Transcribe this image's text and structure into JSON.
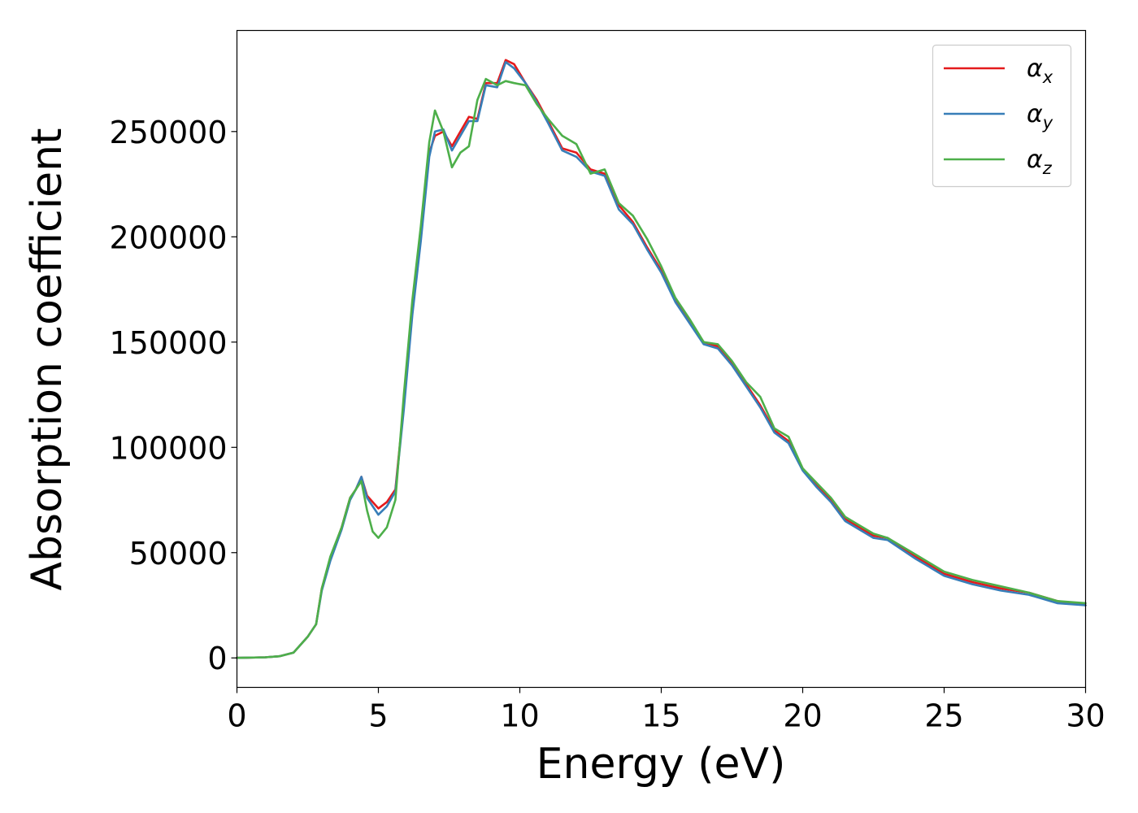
{
  "chart_data": {
    "type": "line",
    "title": "",
    "xlabel": "Energy (eV)",
    "ylabel": "Absorption coefficient",
    "xlim": [
      0,
      30
    ],
    "ylim": [
      -14000,
      298000
    ],
    "xticks": [
      0,
      5,
      10,
      15,
      20,
      25,
      30
    ],
    "yticks": [
      0,
      50000,
      100000,
      150000,
      200000,
      250000
    ],
    "grid": false,
    "legend_position": "top-right",
    "series": [
      {
        "name": "αx",
        "symbol": "α",
        "subscript": "x",
        "color": "#e41a1c",
        "x": [
          0,
          1,
          1.5,
          2,
          2.5,
          2.8,
          3.0,
          3.3,
          3.7,
          4.0,
          4.2,
          4.4,
          4.6,
          5.0,
          5.3,
          5.6,
          5.9,
          6.2,
          6.5,
          6.8,
          7.0,
          7.3,
          7.6,
          7.9,
          8.2,
          8.5,
          8.8,
          9.2,
          9.5,
          9.8,
          10.2,
          10.6,
          11.0,
          11.5,
          12.0,
          12.5,
          13.0,
          13.5,
          14.0,
          14.5,
          15.0,
          15.5,
          16.0,
          16.5,
          17.0,
          17.5,
          18.0,
          18.5,
          19.0,
          19.5,
          20.0,
          20.5,
          21.0,
          21.5,
          22.0,
          22.5,
          23.0,
          24.0,
          25.0,
          26.0,
          27.0,
          28.0,
          29.0,
          30.0
        ],
        "y": [
          0,
          300,
          800,
          2500,
          10000,
          16000,
          33000,
          47000,
          62000,
          76000,
          80000,
          86000,
          77000,
          71000,
          74000,
          80000,
          120000,
          165000,
          200000,
          240000,
          248000,
          250000,
          243000,
          250000,
          257000,
          256000,
          273000,
          273000,
          284000,
          282000,
          273000,
          265000,
          255000,
          242000,
          240000,
          232000,
          230000,
          215000,
          207000,
          195000,
          184000,
          170000,
          160000,
          150000,
          148000,
          140000,
          130000,
          120000,
          108000,
          103000,
          90000,
          82000,
          75000,
          66000,
          62000,
          58000,
          57000,
          48000,
          40000,
          36000,
          33000,
          31000,
          27000,
          25000
        ]
      },
      {
        "name": "αy",
        "symbol": "α",
        "subscript": "y",
        "color": "#377eb8",
        "x": [
          0,
          1,
          1.5,
          2,
          2.5,
          2.8,
          3.0,
          3.3,
          3.7,
          4.0,
          4.2,
          4.4,
          4.6,
          5.0,
          5.3,
          5.6,
          5.9,
          6.2,
          6.5,
          6.8,
          7.0,
          7.3,
          7.6,
          7.9,
          8.2,
          8.5,
          8.8,
          9.2,
          9.5,
          9.8,
          10.2,
          10.6,
          11.0,
          11.5,
          12.0,
          12.5,
          13.0,
          13.5,
          14.0,
          14.5,
          15.0,
          15.5,
          16.0,
          16.5,
          17.0,
          17.5,
          18.0,
          18.5,
          19.0,
          19.5,
          20.0,
          20.5,
          21.0,
          21.5,
          22.0,
          22.5,
          23.0,
          24.0,
          25.0,
          26.0,
          27.0,
          28.0,
          29.0,
          30.0
        ],
        "y": [
          0,
          300,
          800,
          2500,
          10000,
          16000,
          32000,
          46000,
          61000,
          75000,
          80000,
          86000,
          76000,
          68000,
          72000,
          79000,
          118000,
          163000,
          198000,
          238000,
          250000,
          251000,
          241000,
          248000,
          255000,
          255000,
          272000,
          271000,
          283000,
          280000,
          273000,
          264000,
          254000,
          241000,
          238000,
          231000,
          229000,
          213000,
          206000,
          194000,
          183000,
          169000,
          159000,
          149000,
          147000,
          139000,
          129000,
          119000,
          107000,
          102000,
          89000,
          81000,
          74000,
          65000,
          61000,
          57000,
          56000,
          47000,
          39000,
          35000,
          32000,
          30000,
          26000,
          25000
        ]
      },
      {
        "name": "αz",
        "symbol": "α",
        "subscript": "z",
        "color": "#4daf4a",
        "x": [
          0,
          1,
          1.5,
          2,
          2.5,
          2.8,
          3.0,
          3.3,
          3.7,
          4.0,
          4.2,
          4.4,
          4.6,
          4.8,
          5.0,
          5.3,
          5.6,
          5.9,
          6.2,
          6.5,
          6.8,
          7.0,
          7.3,
          7.6,
          7.9,
          8.2,
          8.5,
          8.8,
          9.2,
          9.5,
          9.8,
          10.2,
          10.6,
          11.0,
          11.5,
          12.0,
          12.5,
          13.0,
          13.5,
          14.0,
          14.5,
          15.0,
          15.5,
          16.0,
          16.5,
          17.0,
          17.5,
          18.0,
          18.5,
          19.0,
          19.5,
          20.0,
          20.5,
          21.0,
          21.5,
          22.0,
          22.5,
          23.0,
          24.0,
          25.0,
          26.0,
          27.0,
          28.0,
          29.0,
          30.0
        ],
        "y": [
          0,
          300,
          800,
          2500,
          10000,
          16000,
          33000,
          48000,
          62000,
          76000,
          80000,
          84000,
          70000,
          60000,
          57000,
          62000,
          75000,
          125000,
          170000,
          205000,
          245000,
          260000,
          250000,
          233000,
          240000,
          243000,
          265000,
          275000,
          272000,
          274000,
          273000,
          272000,
          263000,
          256000,
          248000,
          244000,
          230000,
          232000,
          216000,
          210000,
          199000,
          186000,
          171000,
          161000,
          150000,
          149000,
          141000,
          131000,
          124000,
          109000,
          105000,
          90000,
          83000,
          76000,
          67000,
          63000,
          59000,
          57000,
          49000,
          41000,
          37000,
          34000,
          31000,
          27000,
          26000
        ]
      }
    ]
  }
}
